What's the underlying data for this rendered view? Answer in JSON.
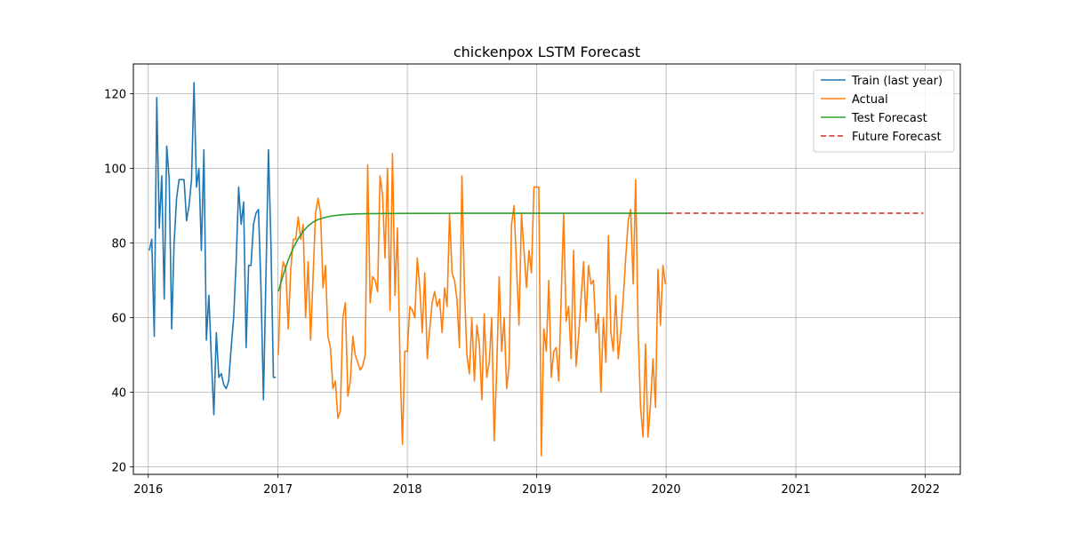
{
  "chart_data": {
    "type": "line",
    "title": "chickenpox LSTM Forecast",
    "xlabel": "",
    "ylabel": "",
    "xlim": [
      "2015-11-20",
      "2022-04-10"
    ],
    "ylim": [
      18,
      128
    ],
    "x_ticks": [
      "2016",
      "2017",
      "2018",
      "2019",
      "2020",
      "2021",
      "2022"
    ],
    "y_ticks": [
      20,
      40,
      60,
      80,
      100,
      120
    ],
    "grid": true,
    "legend_position": "top-right",
    "series": [
      {
        "name": "Train (last year)",
        "color": "#1f77b4",
        "style": "solid",
        "dates": [
          "2016-01-04",
          "2016-01-11",
          "2016-01-18",
          "2016-01-25",
          "2016-02-01",
          "2016-02-08",
          "2016-02-15",
          "2016-02-22",
          "2016-02-29",
          "2016-03-07",
          "2016-03-14",
          "2016-03-21",
          "2016-03-28",
          "2016-04-04",
          "2016-04-11",
          "2016-04-18",
          "2016-04-25",
          "2016-05-02",
          "2016-05-09",
          "2016-05-16",
          "2016-05-23",
          "2016-05-30",
          "2016-06-06",
          "2016-06-13",
          "2016-06-20",
          "2016-06-27",
          "2016-07-04",
          "2016-07-11",
          "2016-07-18",
          "2016-07-25",
          "2016-08-01",
          "2016-08-08",
          "2016-08-15",
          "2016-08-22",
          "2016-08-29",
          "2016-09-05",
          "2016-09-12",
          "2016-09-19",
          "2016-09-26",
          "2016-10-03",
          "2016-10-10",
          "2016-10-17",
          "2016-10-24",
          "2016-10-31",
          "2016-11-07",
          "2016-11-14",
          "2016-11-21",
          "2016-11-28",
          "2016-12-05",
          "2016-12-12",
          "2016-12-19",
          "2016-12-26"
        ],
        "values": [
          78,
          81,
          55,
          119,
          84,
          98,
          65,
          106,
          97,
          57,
          80,
          92,
          97,
          97,
          97,
          86,
          90,
          97,
          123,
          95,
          100,
          78,
          105,
          54,
          66,
          49,
          34,
          56,
          44,
          45,
          42,
          41,
          43,
          52,
          60,
          75,
          95,
          85,
          91,
          52,
          74,
          74,
          85,
          88,
          89,
          68,
          38,
          71,
          105,
          80,
          44,
          44
        ]
      },
      {
        "name": "Actual",
        "color": "#ff7f0e",
        "style": "solid",
        "dates": [
          "2017-01-02",
          "2017-01-09",
          "2017-01-16",
          "2017-01-23",
          "2017-01-30",
          "2017-02-06",
          "2017-02-13",
          "2017-02-20",
          "2017-02-27",
          "2017-03-06",
          "2017-03-13",
          "2017-03-20",
          "2017-03-27",
          "2017-04-03",
          "2017-04-10",
          "2017-04-17",
          "2017-04-24",
          "2017-05-01",
          "2017-05-08",
          "2017-05-15",
          "2017-05-22",
          "2017-05-29",
          "2017-06-05",
          "2017-06-12",
          "2017-06-19",
          "2017-06-26",
          "2017-07-03",
          "2017-07-10",
          "2017-07-17",
          "2017-07-24",
          "2017-07-31",
          "2017-08-07",
          "2017-08-14",
          "2017-08-21",
          "2017-08-28",
          "2017-09-04",
          "2017-09-11",
          "2017-09-18",
          "2017-09-25",
          "2017-10-02",
          "2017-10-09",
          "2017-10-16",
          "2017-10-23",
          "2017-10-30",
          "2017-11-06",
          "2017-11-13",
          "2017-11-20",
          "2017-11-27",
          "2017-12-04",
          "2017-12-11",
          "2017-12-18",
          "2017-12-25",
          "2018-01-01",
          "2018-01-08",
          "2018-01-15",
          "2018-01-22",
          "2018-01-29",
          "2018-02-05",
          "2018-02-12",
          "2018-02-19",
          "2018-02-26",
          "2018-03-05",
          "2018-03-12",
          "2018-03-19",
          "2018-03-26",
          "2018-04-02",
          "2018-04-09",
          "2018-04-16",
          "2018-04-23",
          "2018-04-30",
          "2018-05-07",
          "2018-05-14",
          "2018-05-21",
          "2018-05-28",
          "2018-06-04",
          "2018-06-11",
          "2018-06-18",
          "2018-06-25",
          "2018-07-02",
          "2018-07-09",
          "2018-07-16",
          "2018-07-23",
          "2018-07-30",
          "2018-08-06",
          "2018-08-13",
          "2018-08-20",
          "2018-08-27",
          "2018-09-03",
          "2018-09-10",
          "2018-09-17",
          "2018-09-24",
          "2018-10-01",
          "2018-10-08",
          "2018-10-15",
          "2018-10-22",
          "2018-10-29",
          "2018-11-05",
          "2018-11-12",
          "2018-11-19",
          "2018-11-26",
          "2018-12-03",
          "2018-12-10",
          "2018-12-17",
          "2018-12-24",
          "2018-12-31",
          "2019-01-07",
          "2019-01-14",
          "2019-01-21",
          "2019-01-28",
          "2019-02-04",
          "2019-02-11",
          "2019-02-18",
          "2019-02-25",
          "2019-03-04",
          "2019-03-11",
          "2019-03-18",
          "2019-03-25",
          "2019-04-01",
          "2019-04-08",
          "2019-04-15",
          "2019-04-22",
          "2019-04-29",
          "2019-05-06",
          "2019-05-13",
          "2019-05-20",
          "2019-05-27",
          "2019-06-03",
          "2019-06-10",
          "2019-06-17",
          "2019-06-24",
          "2019-07-01",
          "2019-07-08",
          "2019-07-15",
          "2019-07-22",
          "2019-07-29",
          "2019-08-05",
          "2019-08-12",
          "2019-08-19",
          "2019-08-26",
          "2019-09-02",
          "2019-09-09",
          "2019-09-16",
          "2019-09-23",
          "2019-09-30",
          "2019-10-07",
          "2019-10-14",
          "2019-10-21",
          "2019-10-28",
          "2019-11-04",
          "2019-11-11",
          "2019-11-18",
          "2019-11-25",
          "2019-12-02",
          "2019-12-09",
          "2019-12-16",
          "2019-12-23",
          "2019-12-30"
        ],
        "values": [
          50,
          70,
          75,
          73,
          57,
          73,
          81,
          81,
          87,
          81,
          85,
          60,
          75,
          54,
          71,
          88,
          92,
          88,
          68,
          74,
          55,
          52,
          41,
          43,
          33,
          35,
          60,
          64,
          39,
          43,
          55,
          50,
          48,
          46,
          47,
          50,
          101,
          64,
          71,
          70,
          67,
          98,
          93,
          76,
          100,
          62,
          104,
          66,
          84,
          49,
          26,
          51,
          51,
          63,
          62,
          60,
          76,
          68,
          56,
          72,
          49,
          57,
          64,
          67,
          63,
          65,
          56,
          68,
          63,
          88,
          72,
          70,
          65,
          52,
          98,
          68,
          50,
          45,
          60,
          43,
          58,
          53,
          38,
          61,
          44,
          48,
          60,
          27,
          46,
          71,
          51,
          60,
          41,
          47,
          85,
          90,
          74,
          58,
          88,
          78,
          68,
          78,
          72,
          95,
          95,
          95,
          23,
          57,
          51,
          70,
          44,
          51,
          52,
          43,
          65,
          88,
          59,
          63,
          49,
          78,
          47,
          55,
          65,
          75,
          59,
          74,
          69,
          70,
          56,
          61,
          40,
          60,
          48,
          82,
          56,
          51,
          66,
          49,
          56,
          65,
          76,
          86,
          89,
          69,
          97,
          57,
          36,
          28,
          53,
          28,
          37,
          49,
          36,
          73,
          58,
          74,
          69
        ]
      },
      {
        "name": "Test Forecast",
        "color": "#2ca02c",
        "style": "solid",
        "dates": [
          "2017-01-02",
          "2017-01-16",
          "2017-01-30",
          "2017-02-13",
          "2017-02-27",
          "2017-03-13",
          "2017-03-27",
          "2017-04-10",
          "2017-04-24",
          "2017-05-15",
          "2017-06-05",
          "2017-07-03",
          "2017-08-07",
          "2017-09-04",
          "2017-10-02",
          "2017-11-06",
          "2017-12-04",
          "2018-01-01",
          "2018-03-05",
          "2018-06-04",
          "2018-12-31",
          "2019-06-03",
          "2020-01-06"
        ],
        "values": [
          67,
          71.5,
          75.5,
          78.7,
          81.2,
          83.1,
          84.6,
          85.6,
          86.3,
          86.9,
          87.3,
          87.6,
          87.8,
          87.85,
          87.9,
          87.92,
          87.94,
          87.95,
          87.96,
          87.97,
          87.97,
          87.97,
          87.97
        ]
      },
      {
        "name": "Future Forecast",
        "color": "#d62728",
        "style": "dashed",
        "dates": [
          "2020-01-06",
          "2021-12-27"
        ],
        "values": [
          88,
          88
        ]
      }
    ]
  }
}
